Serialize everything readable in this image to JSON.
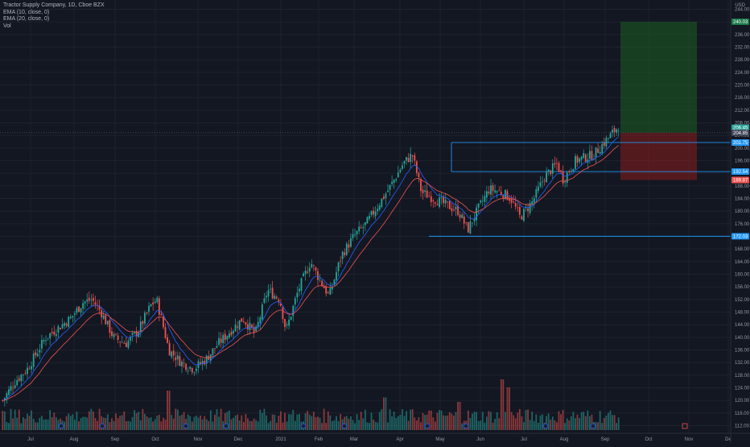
{
  "legend": {
    "symbol_line": "Tractor Supply Company, 1D, Cboe BZX",
    "ema10": "EMA (10, close, 0)",
    "ema20": "EMA (20, close, 0)",
    "vol": "Vol"
  },
  "currency": "USD",
  "colors": {
    "background": "#131722",
    "grid": "#1e222d",
    "up": "#26a69a",
    "down": "#ef5350",
    "ema10": "#2962ff",
    "ema20": "#ef5350",
    "hline": "#2196f3",
    "profit_zone": "#1b5e20",
    "loss_zone": "#7f1d1d",
    "axis_text": "#9598a1"
  },
  "price_tags": [
    {
      "label": "240.03",
      "value": 240.03,
      "color": "#1b7a4a"
    },
    {
      "label": "206.45",
      "value": 206.45,
      "color": "#26a69a"
    },
    {
      "label": "204.85",
      "value": 204.85,
      "color": "#404758"
    },
    {
      "label": "201.75",
      "value": 201.75,
      "color": "#2196f3"
    },
    {
      "label": "192.54",
      "value": 192.54,
      "color": "#2196f3"
    },
    {
      "label": "189.87",
      "value": 189.87,
      "color": "#ef5350"
    },
    {
      "label": "172.03",
      "value": 172.03,
      "color": "#2196f3"
    }
  ],
  "chart_data": {
    "type": "candlestick",
    "title": "Tractor Supply Company, 1D, Cboe BZX",
    "ylabel": "USD",
    "ylim": [
      110,
      244
    ],
    "y_ticks": [
      "244.00",
      "240.00",
      "236.00",
      "232.00",
      "228.00",
      "224.00",
      "220.00",
      "216.00",
      "212.00",
      "208.00",
      "204.00",
      "200.00",
      "196.00",
      "192.00",
      "188.00",
      "184.00",
      "180.00",
      "176.00",
      "172.00",
      "168.00",
      "164.00",
      "160.00",
      "156.00",
      "152.00",
      "148.00",
      "144.00",
      "140.00",
      "136.00",
      "132.00",
      "128.00",
      "124.00",
      "120.00",
      "116.00",
      "112.00"
    ],
    "x_ticks": [
      "Jul",
      "Aug",
      "Sep",
      "Oct",
      "Nov",
      "Dec",
      "2021",
      "Feb",
      "Mar",
      "Apr",
      "May",
      "Jun",
      "Jul",
      "Aug",
      "Sep",
      "Oct",
      "Nov",
      "De"
    ],
    "price_path": [
      {
        "t": 0,
        "p": 120
      },
      {
        "t": 0.02,
        "p": 126
      },
      {
        "t": 0.04,
        "p": 130
      },
      {
        "t": 0.07,
        "p": 140
      },
      {
        "t": 0.09,
        "p": 143
      },
      {
        "t": 0.11,
        "p": 146
      },
      {
        "t": 0.13,
        "p": 151
      },
      {
        "t": 0.145,
        "p": 152
      },
      {
        "t": 0.16,
        "p": 148
      },
      {
        "t": 0.18,
        "p": 140
      },
      {
        "t": 0.2,
        "p": 138
      },
      {
        "t": 0.22,
        "p": 142
      },
      {
        "t": 0.24,
        "p": 150
      },
      {
        "t": 0.25,
        "p": 152
      },
      {
        "t": 0.27,
        "p": 136
      },
      {
        "t": 0.29,
        "p": 132
      },
      {
        "t": 0.31,
        "p": 130
      },
      {
        "t": 0.33,
        "p": 133
      },
      {
        "t": 0.35,
        "p": 138
      },
      {
        "t": 0.37,
        "p": 142
      },
      {
        "t": 0.39,
        "p": 146
      },
      {
        "t": 0.41,
        "p": 141
      },
      {
        "t": 0.43,
        "p": 155
      },
      {
        "t": 0.45,
        "p": 152
      },
      {
        "t": 0.46,
        "p": 142
      },
      {
        "t": 0.48,
        "p": 155
      },
      {
        "t": 0.5,
        "p": 164
      },
      {
        "t": 0.51,
        "p": 160
      },
      {
        "t": 0.53,
        "p": 153
      },
      {
        "t": 0.55,
        "p": 166
      },
      {
        "t": 0.57,
        "p": 172
      },
      {
        "t": 0.59,
        "p": 176
      },
      {
        "t": 0.61,
        "p": 182
      },
      {
        "t": 0.63,
        "p": 188
      },
      {
        "t": 0.65,
        "p": 195
      },
      {
        "t": 0.665,
        "p": 198
      },
      {
        "t": 0.68,
        "p": 186
      },
      {
        "t": 0.7,
        "p": 184
      },
      {
        "t": 0.72,
        "p": 182
      },
      {
        "t": 0.74,
        "p": 180
      },
      {
        "t": 0.755,
        "p": 174
      },
      {
        "t": 0.77,
        "p": 180
      },
      {
        "t": 0.79,
        "p": 187
      },
      {
        "t": 0.81,
        "p": 186
      },
      {
        "t": 0.825,
        "p": 184
      },
      {
        "t": 0.84,
        "p": 178
      },
      {
        "t": 0.86,
        "p": 183
      },
      {
        "t": 0.88,
        "p": 191
      },
      {
        "t": 0.9,
        "p": 195
      },
      {
        "t": 0.91,
        "p": 190
      },
      {
        "t": 0.93,
        "p": 196
      },
      {
        "t": 0.96,
        "p": 198
      },
      {
        "t": 1.0,
        "p": 207
      }
    ],
    "horizontal_lines": [
      201.75,
      192.54,
      172.03
    ],
    "position": {
      "entry": 204.85,
      "target": 240.03,
      "stop": 189.87
    },
    "volume_spikes": [
      {
        "t": 0.27,
        "v": 3.5,
        "up": false
      },
      {
        "t": 0.62,
        "v": 2.9,
        "up": true
      },
      {
        "t": 0.74,
        "v": 2.5,
        "up": false
      },
      {
        "t": 0.81,
        "v": 4.5,
        "up": true
      },
      {
        "t": 0.82,
        "v": 3.8,
        "up": false
      }
    ],
    "series": [
      {
        "name": "EMA (10, close, 0)"
      },
      {
        "name": "EMA (20, close, 0)"
      }
    ]
  }
}
